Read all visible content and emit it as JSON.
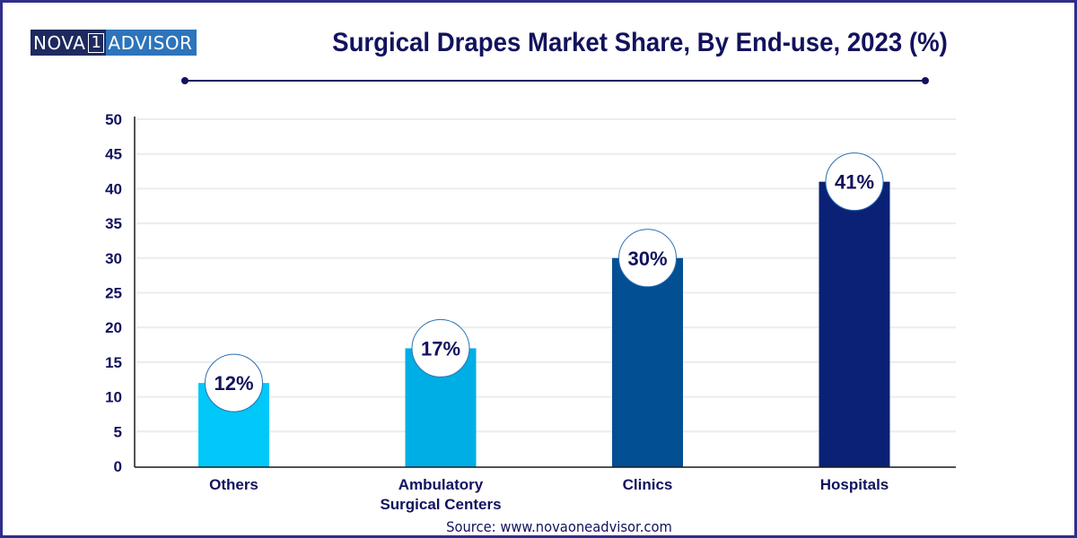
{
  "logo": {
    "part1": "NOVA",
    "part2": "1",
    "part3": "ADVISOR"
  },
  "colors": {
    "border": "#2e2e8a",
    "title": "#12125e",
    "logo_dark": "#1e2a5e",
    "logo_light": "#2d74bb"
  },
  "source": "Source: www.novaoneadvisor.com",
  "chart_data": {
    "type": "bar",
    "title": "Surgical Drapes Market Share, By End-use, 2023 (%)",
    "xlabel": "",
    "ylabel": "",
    "categories": [
      "Others",
      "Ambulatory Surgical Centers",
      "Clinics",
      "Hospitals"
    ],
    "category_lines": [
      [
        "Others"
      ],
      [
        "Ambulatory",
        "Surgical Centers"
      ],
      [
        "Clinics"
      ],
      [
        "Hospitals"
      ]
    ],
    "values": [
      12,
      17,
      30,
      41
    ],
    "data_labels": [
      "12%",
      "17%",
      "30%",
      "41%"
    ],
    "bar_colors": [
      "#00c8f8",
      "#00aee6",
      "#034f94",
      "#0a2175"
    ],
    "ylim": [
      0,
      50
    ],
    "yticks": [
      0,
      5,
      10,
      15,
      20,
      25,
      30,
      35,
      40,
      45,
      50
    ],
    "grid": true,
    "legend": "none"
  }
}
